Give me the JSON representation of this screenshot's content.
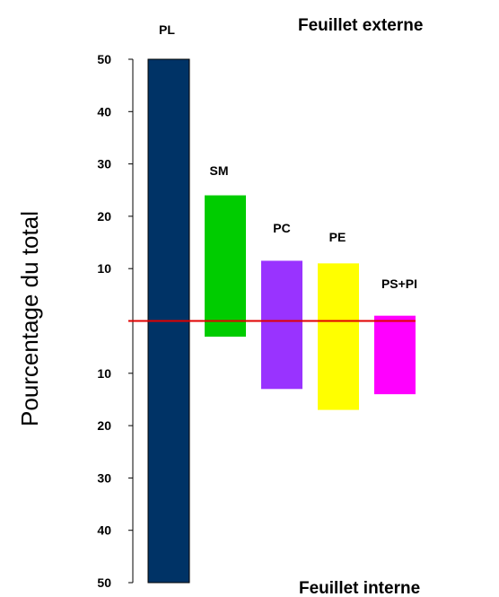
{
  "chart_data": {
    "type": "bar",
    "orientation": "diverging-vertical",
    "ylabel": "Pourcentage du total",
    "top_label": "Feuillet externe",
    "bottom_label": "Feuillet interne",
    "upper_ticks": [
      "50",
      "40",
      "30",
      "20",
      "10"
    ],
    "lower_ticks": [
      "10",
      "20",
      "30",
      "40",
      "50"
    ],
    "ylim": [
      -50,
      50
    ],
    "reference_line": {
      "value": 0,
      "color": "#e00000"
    },
    "categories": [
      "PL",
      "SM",
      "PC",
      "PE",
      "PS+PI"
    ],
    "outer_values": [
      50,
      24,
      11.5,
      11,
      1
    ],
    "inner_values": [
      50,
      3,
      13,
      17,
      14
    ],
    "colors": [
      "#003366",
      "#00cc00",
      "#9933ff",
      "#ffff00",
      "#ff00ff"
    ]
  }
}
